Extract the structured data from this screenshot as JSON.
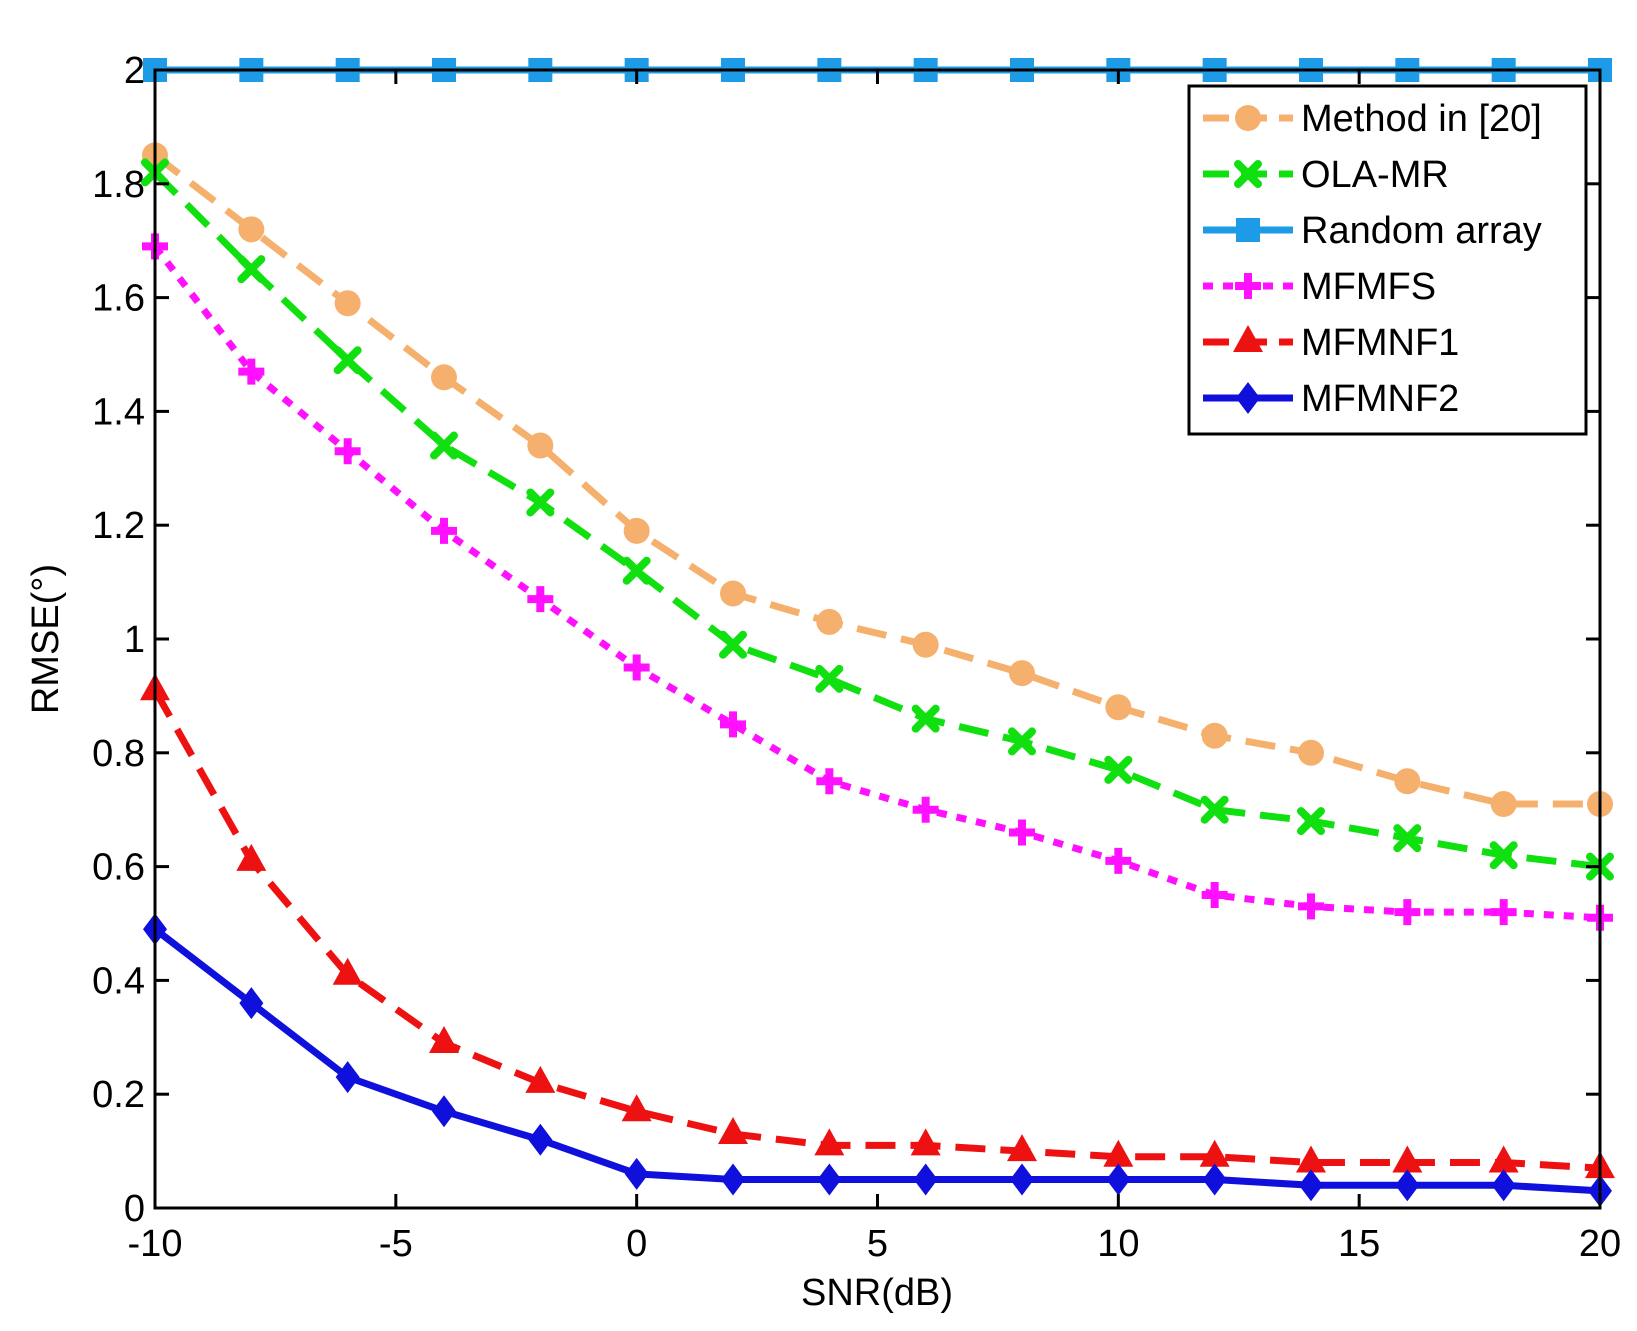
{
  "chart_data": {
    "type": "line",
    "title": "",
    "xlabel": "SNR(dB)",
    "ylabel": "RMSE(°)",
    "xlim": [
      -10,
      20
    ],
    "ylim": [
      0,
      2
    ],
    "xticks": [
      -10,
      -5,
      0,
      5,
      10,
      15,
      20
    ],
    "yticks": [
      0,
      0.2,
      0.4,
      0.6,
      0.8,
      1,
      1.2,
      1.4,
      1.6,
      1.8,
      2
    ],
    "grid": false,
    "legend_position": "top-right",
    "x": [
      -10,
      -8,
      -6,
      -4,
      -2,
      0,
      2,
      4,
      6,
      8,
      10,
      12,
      14,
      16,
      18,
      20
    ],
    "series": [
      {
        "name": "Method in [20]",
        "color": "#f5b06e",
        "dash": "dashed",
        "marker": "circle",
        "values": [
          1.85,
          1.72,
          1.59,
          1.46,
          1.34,
          1.19,
          1.08,
          1.03,
          0.99,
          0.94,
          0.88,
          0.83,
          0.8,
          0.75,
          0.71,
          0.71
        ]
      },
      {
        "name": "OLA-MR",
        "color": "#10e010",
        "dash": "dashed",
        "marker": "x",
        "values": [
          1.82,
          1.65,
          1.49,
          1.34,
          1.24,
          1.12,
          0.99,
          0.93,
          0.86,
          0.82,
          0.77,
          0.7,
          0.68,
          0.65,
          0.62,
          0.6
        ]
      },
      {
        "name": "Random array",
        "color": "#1e9be6",
        "dash": "solid",
        "marker": "square",
        "values": [
          2,
          2,
          2,
          2,
          2,
          2,
          2,
          2,
          2,
          2,
          2,
          2,
          2,
          2,
          2,
          2
        ]
      },
      {
        "name": "MFMFS",
        "color": "#ff10ff",
        "dash": "dotted",
        "marker": "plus",
        "values": [
          1.69,
          1.47,
          1.33,
          1.19,
          1.07,
          0.95,
          0.85,
          0.75,
          0.7,
          0.66,
          0.61,
          0.55,
          0.53,
          0.52,
          0.52,
          0.51
        ]
      },
      {
        "name": "MFMNF1",
        "color": "#ee1111",
        "dash": "dashed",
        "marker": "triangle",
        "values": [
          0.91,
          0.61,
          0.41,
          0.29,
          0.22,
          0.17,
          0.13,
          0.11,
          0.11,
          0.1,
          0.09,
          0.09,
          0.08,
          0.08,
          0.08,
          0.07
        ]
      },
      {
        "name": "MFMNF2",
        "color": "#1010dd",
        "dash": "solid",
        "marker": "diamond",
        "values": [
          0.49,
          0.36,
          0.23,
          0.17,
          0.12,
          0.06,
          0.05,
          0.05,
          0.05,
          0.05,
          0.05,
          0.05,
          0.04,
          0.04,
          0.04,
          0.03
        ]
      }
    ]
  }
}
